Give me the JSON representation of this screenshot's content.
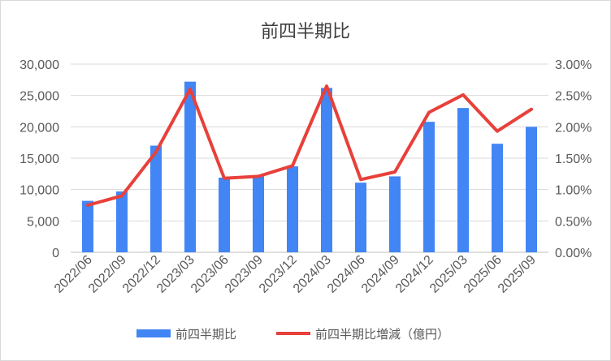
{
  "chart_data": {
    "type": "bar",
    "title": "前四半期比",
    "categories": [
      "2022/06",
      "2022/09",
      "2022/12",
      "2023/03",
      "2023/06",
      "2023/09",
      "2023/12",
      "2024/03",
      "2024/06",
      "2024/09",
      "2024/12",
      "2025/03",
      "2025/06",
      "2025/09"
    ],
    "series": [
      {
        "name": "前四半期比",
        "type": "bar",
        "axis": "left",
        "color": "#4285f4",
        "values": [
          8200,
          9700,
          17000,
          27200,
          11900,
          12100,
          13700,
          26200,
          11100,
          12100,
          20800,
          23000,
          17300,
          20000
        ]
      },
      {
        "name": "前四半期比増減（億円）",
        "type": "line",
        "axis": "right",
        "color": "#e8403b",
        "values": [
          0.0075,
          0.009,
          0.016,
          0.026,
          0.0118,
          0.0121,
          0.0138,
          0.0265,
          0.0116,
          0.0128,
          0.0223,
          0.0251,
          0.0193,
          0.0228
        ]
      }
    ],
    "y_left": {
      "ticks": [
        "0",
        "5,000",
        "10,000",
        "15,000",
        "20,000",
        "25,000",
        "30,000"
      ],
      "lim": [
        0,
        30000
      ]
    },
    "y_right": {
      "ticks": [
        "0.00%",
        "0.50%",
        "1.00%",
        "1.50%",
        "2.00%",
        "2.50%",
        "3.00%"
      ],
      "lim": [
        0,
        0.03
      ]
    },
    "grid": true,
    "legend": "bottom"
  }
}
